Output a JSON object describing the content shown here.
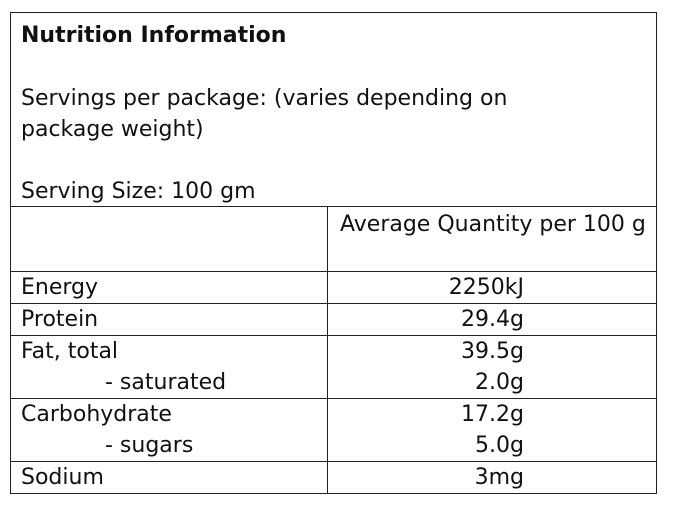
{
  "header": {
    "title": "Nutrition Information",
    "servings": "Servings per package: (varies depending on package weight)",
    "serving_size": "Serving Size: 100 gm"
  },
  "table": {
    "column_header": "Average Quantity per 100 g",
    "rows": [
      [
        [
          "Energy",
          "2250kJ"
        ]
      ],
      [
        [
          "Protein",
          "29.4g"
        ]
      ],
      [
        [
          "Fat, total",
          "39.5g"
        ],
        [
          "- saturated",
          "2.0g"
        ]
      ],
      [
        [
          "Carbohydrate",
          "17.2g"
        ],
        [
          "- sugars",
          "5.0g"
        ]
      ],
      [
        [
          "Sodium",
          "3mg"
        ]
      ]
    ]
  }
}
